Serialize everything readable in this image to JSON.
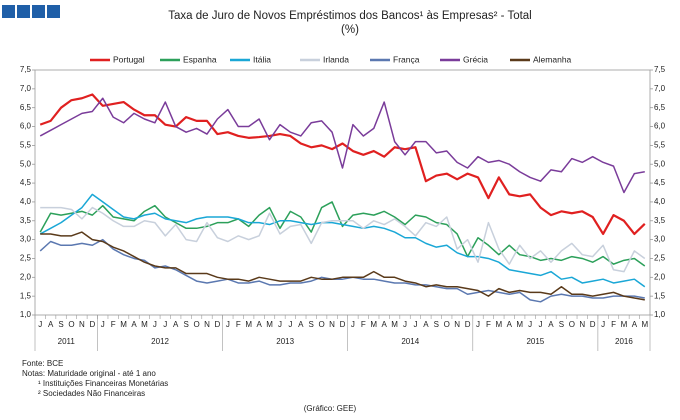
{
  "chart_data": {
    "type": "line",
    "title": "Taxa de Juro de Novos Empréstimos dos Bancos¹ às Empresas² - Total",
    "subtitle": "(%)",
    "categories": [
      "J",
      "A",
      "S",
      "O",
      "N",
      "D",
      "J",
      "F",
      "M",
      "A",
      "M",
      "J",
      "J",
      "A",
      "S",
      "O",
      "N",
      "D",
      "J",
      "F",
      "M",
      "A",
      "M",
      "J",
      "J",
      "A",
      "S",
      "O",
      "N",
      "D",
      "J",
      "F",
      "M",
      "A",
      "M",
      "J",
      "J",
      "A",
      "S",
      "O",
      "N",
      "D",
      "J",
      "F",
      "M",
      "A",
      "M",
      "J",
      "J",
      "A",
      "S",
      "O",
      "N",
      "D",
      "J",
      "F",
      "M",
      "A",
      "M"
    ],
    "year_groups": [
      {
        "label": "2011",
        "count": 6
      },
      {
        "label": "2012",
        "count": 12
      },
      {
        "label": "2013",
        "count": 12
      },
      {
        "label": "2014",
        "count": 12
      },
      {
        "label": "2015",
        "count": 12
      },
      {
        "label": "2016",
        "count": 5
      }
    ],
    "series": [
      {
        "name": "Portugal",
        "color": "#e02020",
        "values": [
          6.05,
          6.15,
          6.5,
          6.7,
          6.75,
          6.85,
          6.55,
          6.6,
          6.65,
          6.45,
          6.3,
          6.3,
          6.05,
          6.0,
          6.25,
          6.15,
          6.15,
          5.8,
          5.85,
          5.75,
          5.7,
          5.72,
          5.75,
          5.8,
          5.75,
          5.55,
          5.45,
          5.5,
          5.4,
          5.55,
          5.35,
          5.25,
          5.35,
          5.2,
          5.45,
          5.4,
          5.45,
          4.55,
          4.7,
          4.75,
          4.6,
          4.75,
          4.65,
          4.1,
          4.65,
          4.2,
          4.15,
          4.2,
          3.85,
          3.65,
          3.75,
          3.7,
          3.75,
          3.6,
          3.15,
          3.65,
          3.5,
          3.15,
          3.42
        ]
      },
      {
        "name": "Espanha",
        "color": "#2ca05a",
        "values": [
          3.2,
          3.7,
          3.65,
          3.7,
          3.75,
          3.65,
          3.9,
          3.6,
          3.55,
          3.5,
          3.75,
          3.9,
          3.6,
          3.45,
          3.3,
          3.3,
          3.35,
          3.45,
          3.45,
          3.55,
          3.35,
          3.65,
          3.85,
          3.3,
          3.75,
          3.6,
          3.2,
          3.85,
          4.0,
          3.35,
          3.65,
          3.7,
          3.65,
          3.75,
          3.6,
          3.4,
          3.65,
          3.6,
          3.45,
          3.4,
          3.15,
          2.55,
          3.05,
          2.85,
          2.6,
          2.85,
          2.6,
          2.55,
          2.45,
          2.5,
          2.45,
          2.55,
          2.5,
          2.4,
          2.55,
          2.35,
          2.45,
          2.5,
          2.3
        ]
      },
      {
        "name": "Itália",
        "color": "#1aa7d6",
        "values": [
          3.15,
          3.3,
          3.45,
          3.65,
          3.85,
          4.2,
          4.0,
          3.8,
          3.6,
          3.55,
          3.65,
          3.7,
          3.55,
          3.5,
          3.45,
          3.55,
          3.6,
          3.6,
          3.6,
          3.55,
          3.45,
          3.45,
          3.4,
          3.5,
          3.5,
          3.45,
          3.4,
          3.45,
          3.45,
          3.4,
          3.35,
          3.3,
          3.35,
          3.3,
          3.2,
          3.05,
          3.05,
          2.9,
          2.8,
          2.85,
          2.65,
          2.55,
          2.55,
          2.5,
          2.4,
          2.2,
          2.15,
          2.1,
          2.05,
          2.15,
          1.95,
          2.0,
          1.85,
          1.9,
          1.95,
          1.85,
          1.9,
          1.95,
          1.75
        ]
      },
      {
        "name": "Irlanda",
        "color": "#c8d0dc",
        "values": [
          3.85,
          3.85,
          3.85,
          3.8,
          3.55,
          3.85,
          3.7,
          3.5,
          3.35,
          3.35,
          3.5,
          3.45,
          3.1,
          3.4,
          3.0,
          2.95,
          3.45,
          3.05,
          2.95,
          3.1,
          3.0,
          3.1,
          3.7,
          3.15,
          3.35,
          3.4,
          2.9,
          3.45,
          3.5,
          3.5,
          3.5,
          3.3,
          3.5,
          3.4,
          3.55,
          3.35,
          3.1,
          3.45,
          3.35,
          3.6,
          2.75,
          3.0,
          2.4,
          3.45,
          2.75,
          2.35,
          2.85,
          2.5,
          2.7,
          2.4,
          2.7,
          2.9,
          2.6,
          2.55,
          2.85,
          2.2,
          2.15,
          2.7,
          2.5
        ]
      },
      {
        "name": "França",
        "color": "#5b78b0",
        "values": [
          2.7,
          2.95,
          2.85,
          2.85,
          2.9,
          2.85,
          3.0,
          2.75,
          2.6,
          2.5,
          2.45,
          2.25,
          2.3,
          2.2,
          2.05,
          1.9,
          1.85,
          1.9,
          1.95,
          1.85,
          1.85,
          1.9,
          1.8,
          1.8,
          1.85,
          1.85,
          1.9,
          2.0,
          1.95,
          1.95,
          2.0,
          1.95,
          1.95,
          1.9,
          1.85,
          1.85,
          1.8,
          1.8,
          1.75,
          1.7,
          1.7,
          1.55,
          1.6,
          1.65,
          1.6,
          1.55,
          1.6,
          1.4,
          1.35,
          1.5,
          1.55,
          1.5,
          1.5,
          1.45,
          1.45,
          1.5,
          1.5,
          1.5,
          1.45
        ]
      },
      {
        "name": "Grécia",
        "color": "#7a3c9a",
        "values": [
          5.75,
          5.9,
          6.05,
          6.2,
          6.35,
          6.4,
          6.75,
          6.25,
          6.1,
          6.35,
          6.2,
          6.1,
          6.65,
          6.0,
          5.85,
          5.95,
          5.8,
          6.2,
          6.45,
          6.0,
          6.0,
          6.2,
          5.65,
          6.05,
          5.85,
          5.75,
          6.1,
          6.15,
          5.85,
          4.9,
          6.05,
          5.75,
          5.95,
          6.65,
          5.6,
          5.25,
          5.6,
          5.6,
          5.3,
          5.35,
          5.05,
          4.9,
          5.2,
          5.05,
          5.1,
          5.0,
          4.8,
          4.65,
          4.55,
          4.85,
          4.8,
          5.15,
          5.05,
          5.2,
          5.05,
          4.95,
          4.25,
          4.75,
          4.8
        ]
      },
      {
        "name": "Alemanha",
        "color": "#5a3a1a",
        "values": [
          3.15,
          3.15,
          3.1,
          3.1,
          3.2,
          3.0,
          2.95,
          2.8,
          2.7,
          2.55,
          2.4,
          2.3,
          2.25,
          2.25,
          2.1,
          2.1,
          2.1,
          2.0,
          1.95,
          1.95,
          1.9,
          2.0,
          1.95,
          1.9,
          1.9,
          1.9,
          2.0,
          1.95,
          1.95,
          2.0,
          2.0,
          2.0,
          2.15,
          2.0,
          2.0,
          1.9,
          1.85,
          1.75,
          1.8,
          1.75,
          1.75,
          1.7,
          1.65,
          1.5,
          1.7,
          1.6,
          1.65,
          1.6,
          1.6,
          1.55,
          1.75,
          1.55,
          1.55,
          1.5,
          1.55,
          1.6,
          1.5,
          1.45,
          1.4
        ]
      }
    ],
    "ylim": [
      1.0,
      7.5
    ],
    "yticks": [
      {
        "value": 1.0,
        "label": "1,0"
      },
      {
        "value": 1.5,
        "label": "1,5"
      },
      {
        "value": 2.0,
        "label": "2,0"
      },
      {
        "value": 2.5,
        "label": "2,5"
      },
      {
        "value": 3.0,
        "label": "3,0"
      },
      {
        "value": 3.5,
        "label": "3,5"
      },
      {
        "value": 4.0,
        "label": "4,0"
      },
      {
        "value": 4.5,
        "label": "4,5"
      },
      {
        "value": 5.0,
        "label": "5,0"
      },
      {
        "value": 5.5,
        "label": "5,5"
      },
      {
        "value": 6.0,
        "label": "6,0"
      },
      {
        "value": 6.5,
        "label": "6,5"
      },
      {
        "value": 7.0,
        "label": "7,0"
      },
      {
        "value": 7.5,
        "label": "7,5"
      }
    ],
    "y2lim": [
      1.0,
      7.5
    ],
    "y2ticks": [
      {
        "value": 1.0,
        "label": "1,0"
      },
      {
        "value": 1.5,
        "label": "1,5"
      },
      {
        "value": 2.0,
        "label": "2,0"
      },
      {
        "value": 2.5,
        "label": "2,5"
      },
      {
        "value": 3.0,
        "label": "3,0"
      },
      {
        "value": 3.5,
        "label": "3,5"
      },
      {
        "value": 4.0,
        "label": "4,0"
      },
      {
        "value": 4.5,
        "label": "4,5"
      },
      {
        "value": 5.0,
        "label": "5,0"
      },
      {
        "value": 5.5,
        "label": "5,5"
      },
      {
        "value": 6.0,
        "label": "6,0"
      },
      {
        "value": 6.5,
        "label": "6,5"
      },
      {
        "value": 7.0,
        "label": "7,0"
      },
      {
        "value": 7.5,
        "label": "7,5"
      }
    ],
    "grid": false,
    "legend": "top",
    "notes": [
      "Fonte: BCE",
      "Notas: Maturidade original - até 1 ano",
      "¹ Instituições Financeiras Monetárias",
      "² Sociedades Não Financeiras"
    ],
    "credit": "(Gráfico: GEE)"
  }
}
